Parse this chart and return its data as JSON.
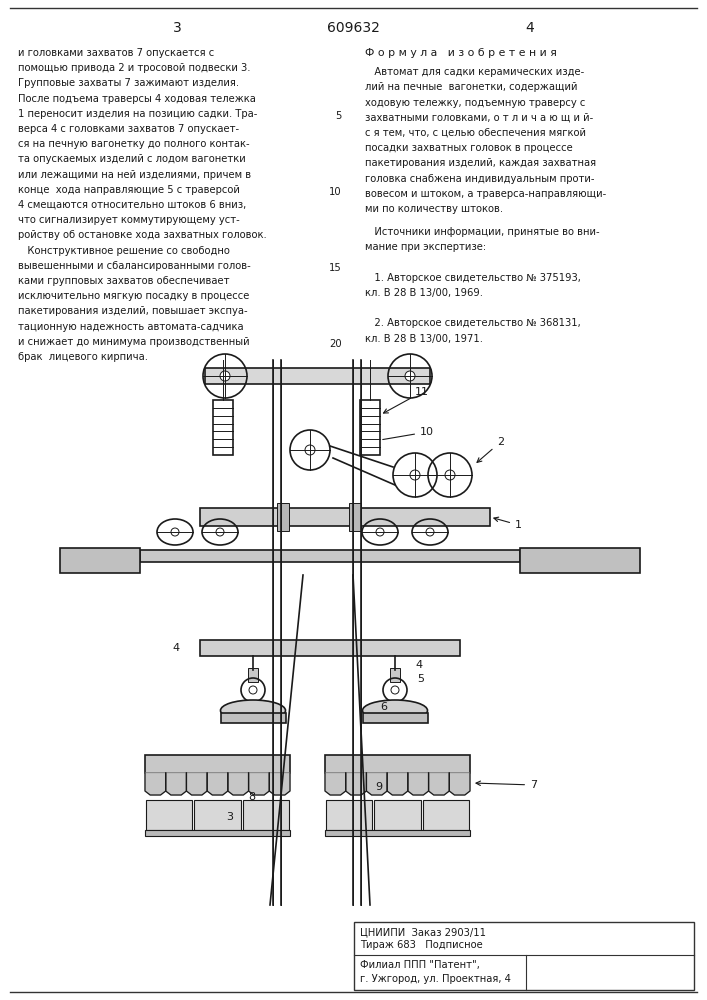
{
  "page_number_left": "3",
  "patent_number": "609632",
  "page_number_right": "4",
  "background_color": "#ffffff",
  "text_color": "#1a1a1a",
  "border_color": "#333333",
  "left_column_text": [
    "и головками захватов 7 опускается с",
    "помощью привода 2 и тросовой подвески 3.",
    "Групповые захваты 7 зажимают изделия.",
    "После подъема траверсы 4 ходовая тележка",
    "1 переносит изделия на позицию садки. Тра-",
    "верса 4 с головками захватов 7 опускает-",
    "ся на печную вагонетку до полного контак-",
    "та опускаемых изделий с лодом вагонетки",
    "или лежащими на ней изделиями, причем в",
    "конце  хода направляющие 5 с траверсой",
    "4 смещаются относительно штоков 6 вниз,",
    "что сигнализирует коммутирующему уст-",
    "ройству об остановке хода захватных головок.",
    "   Конструктивное решение со свободно",
    "вывешенными и сбалансированными голов-",
    "ками групповых захватов обеспечивает",
    "исключительно мягкую посадку в процессе",
    "пакетирования изделий, повышает экспуа-",
    "тационную надежность автомата-садчика",
    "и снижает до минимума производственный",
    "брак  лицевого кирпича."
  ],
  "right_column_title": "Ф о р м у л а   и з о б р е т е н и я",
  "right_column_text": [
    "   Автомат для садки керамических изде-",
    "лий на печные  вагонетки, содержащий",
    "ходовую тележку, подъемную траверсу с",
    "захватными головками, о т л и ч а ю щ и й-",
    "с я тем, что, с целью обеспечения мягкой",
    "посадки захватных головок в процессе",
    "пакетирования изделий, каждая захватная",
    "головка снабжена индивидуальным проти-",
    "вовесом и штоком, а траверса-направляющи-",
    "ми по количеству штоков."
  ],
  "sources_title": "   Источники информации, принятые во вни-",
  "sources_text": [
    "мание при экспертизе:",
    "",
    "   1. Авторское свидетельство № 375193,",
    "кл. В 28 В 13/00, 1969.",
    "",
    "   2. Авторское свидетельство № 368131,",
    "кл. В 28 В 13/00, 1971."
  ],
  "bottom_info": [
    "ЦНИИПИ  Заказ 2903/11",
    "Тираж 683   Подписное",
    "Филиал ППП \"Патент\",",
    "г. Ужгород, ул. Проектная, 4"
  ]
}
